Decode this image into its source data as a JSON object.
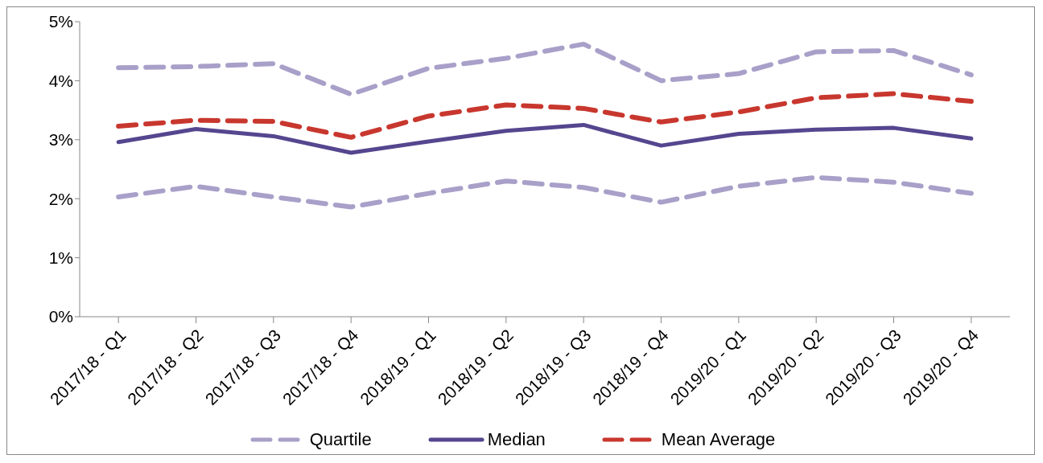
{
  "chart_data": {
    "type": "line",
    "categories": [
      "2017/18 - Q1",
      "2017/18 - Q2",
      "2017/18 - Q3",
      "2017/18 - Q4",
      "2018/19 - Q1",
      "2018/19 - Q2",
      "2018/19 - Q3",
      "2018/19 - Q4",
      "2019/20 - Q1",
      "2019/20 - Q2",
      "2019/20 - Q3",
      "2019/20 - Q4"
    ],
    "series": [
      {
        "name": "Quartile",
        "color": "#a9a0c9",
        "line_style": "dashed",
        "values": [
          4.22,
          4.24,
          4.29,
          3.77,
          4.21,
          4.38,
          4.62,
          4.0,
          4.12,
          4.49,
          4.51,
          4.1
        ]
      },
      {
        "name": "Median",
        "color": "#55468f",
        "line_style": "solid",
        "values": [
          2.96,
          3.18,
          3.06,
          2.78,
          2.97,
          3.15,
          3.25,
          2.9,
          3.1,
          3.17,
          3.2,
          3.02
        ]
      },
      {
        "name": "Mean Average",
        "color": "#c8372e",
        "line_style": "dashed",
        "values": [
          3.23,
          3.33,
          3.31,
          3.04,
          3.4,
          3.59,
          3.53,
          3.3,
          3.47,
          3.71,
          3.78,
          3.65
        ]
      },
      {
        "color": "#a9a0c9",
        "line_style": "dashed",
        "values": [
          2.03,
          2.21,
          2.03,
          1.86,
          2.09,
          2.3,
          2.19,
          1.94,
          2.21,
          2.36,
          2.28,
          2.09
        ]
      }
    ],
    "ylim": [
      0,
      5
    ],
    "yticks": [
      {
        "value": 0,
        "label": "0%"
      },
      {
        "value": 1,
        "label": "1%"
      },
      {
        "value": 2,
        "label": "2%"
      },
      {
        "value": 3,
        "label": "3%"
      },
      {
        "value": 4,
        "label": "4%"
      },
      {
        "value": 5,
        "label": "5%"
      }
    ],
    "grid": false,
    "legend": "bottom",
    "marker": "none"
  }
}
